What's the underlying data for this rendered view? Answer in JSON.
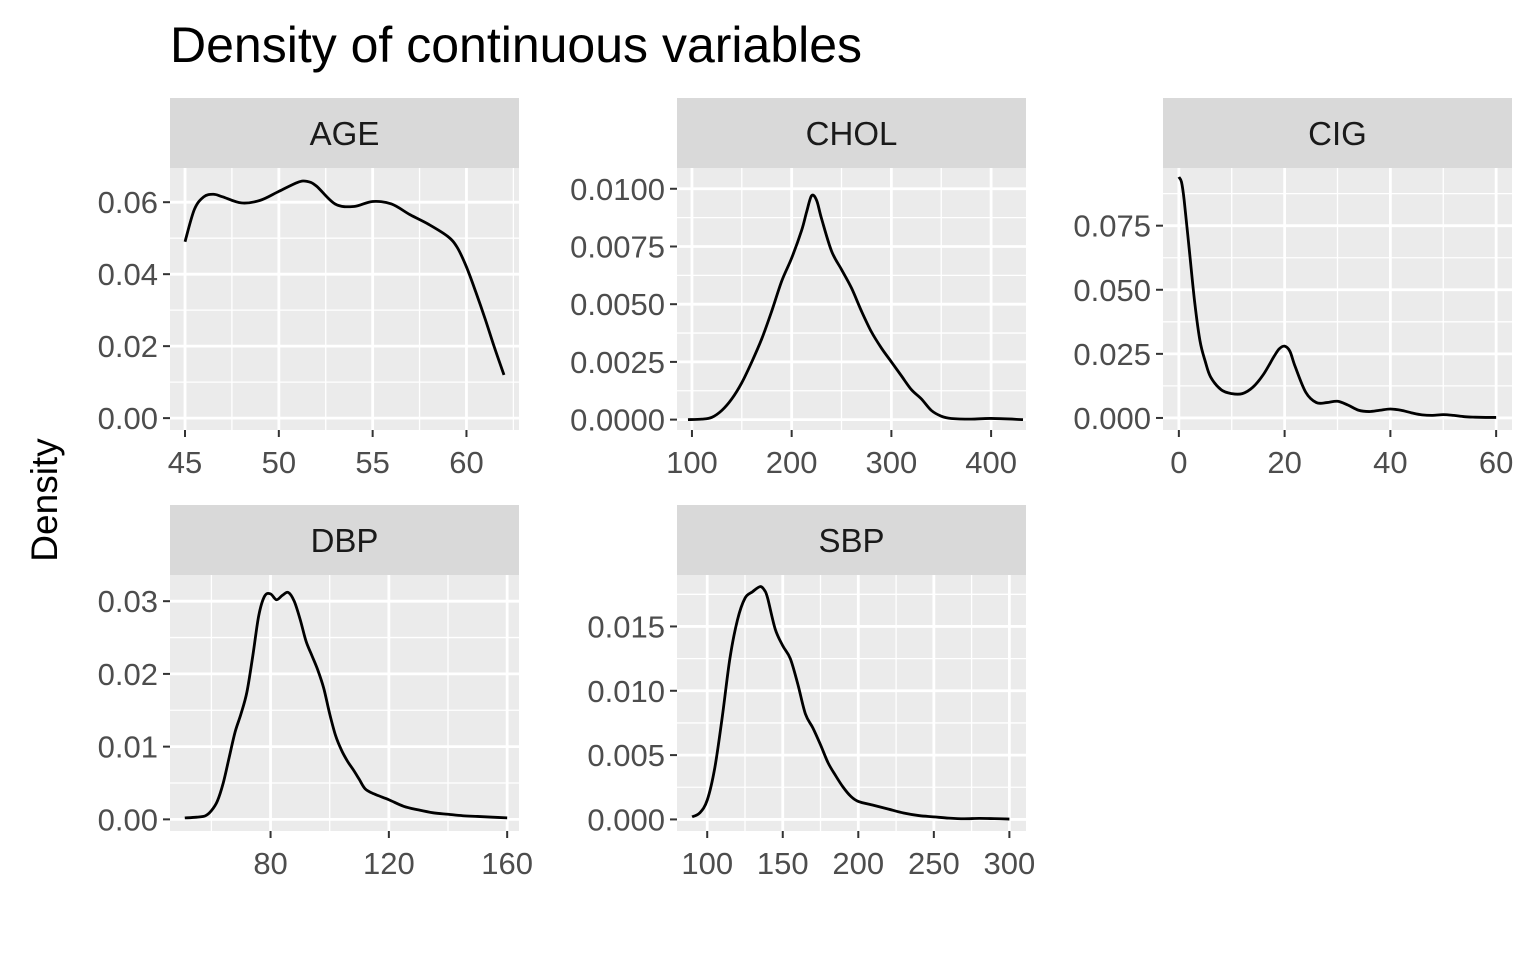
{
  "chart_data": {
    "type": "line",
    "title": "Density of continuous variables",
    "ylabel": "Density",
    "xlabel": "",
    "colors": {
      "panel_bg": "#EBEBEB",
      "strip_bg": "#D9D9D9",
      "grid": "#FFFFFF",
      "line": "#000000",
      "tick": "#4D4D4D"
    },
    "panels": [
      {
        "name": "AGE",
        "xlim": [
          44.2,
          62.8
        ],
        "ylim": [
          -0.0033,
          0.0695
        ],
        "xticks": [
          45,
          50,
          55,
          60
        ],
        "xtick_labels": [
          "45",
          "50",
          "55",
          "60"
        ],
        "yticks": [
          0,
          0.02,
          0.04,
          0.06
        ],
        "ytick_labels": [
          "0.00",
          "0.02",
          "0.04",
          "0.06"
        ],
        "x": [
          45,
          45.5,
          46,
          46.5,
          47,
          48,
          49,
          50,
          51,
          51.5,
          52,
          53,
          54,
          55,
          56,
          57,
          58,
          59,
          59.5,
          60,
          60.5,
          61,
          61.5,
          62
        ],
        "y": [
          0.049,
          0.058,
          0.0615,
          0.0622,
          0.0615,
          0.0598,
          0.0605,
          0.063,
          0.0655,
          0.0658,
          0.0645,
          0.0595,
          0.0588,
          0.0602,
          0.0595,
          0.0565,
          0.0538,
          0.0505,
          0.0475,
          0.042,
          0.035,
          0.0275,
          0.0195,
          0.012
        ]
      },
      {
        "name": "CHOL",
        "xlim": [
          85,
          435
        ],
        "ylim": [
          -0.00045,
          0.0109
        ],
        "xticks": [
          100,
          200,
          300,
          400
        ],
        "xtick_labels": [
          "100",
          "200",
          "300",
          "400"
        ],
        "yticks": [
          0,
          0.0025,
          0.005,
          0.0075,
          0.01
        ],
        "ytick_labels": [
          "0.0000",
          "0.0025",
          "0.0050",
          "0.0075",
          "0.0100"
        ],
        "x": [
          96,
          110,
          120,
          130,
          140,
          150,
          160,
          170,
          180,
          190,
          200,
          210,
          215,
          220,
          225,
          230,
          240,
          250,
          260,
          270,
          280,
          290,
          300,
          310,
          320,
          330,
          340,
          350,
          360,
          380,
          400,
          432
        ],
        "y": [
          0,
          2e-05,
          0.0001,
          0.0004,
          0.0009,
          0.0016,
          0.0025,
          0.0035,
          0.0047,
          0.006,
          0.007,
          0.0082,
          0.009,
          0.0097,
          0.0095,
          0.0087,
          0.0073,
          0.0065,
          0.0057,
          0.0047,
          0.0038,
          0.0031,
          0.0025,
          0.0019,
          0.0013,
          0.0009,
          0.0004,
          0.00015,
          5e-05,
          2e-05,
          5e-05,
          0
        ]
      },
      {
        "name": "CIG",
        "xlim": [
          -3,
          63
        ],
        "ylim": [
          -0.0047,
          0.0975
        ],
        "xticks": [
          0,
          20,
          40,
          60
        ],
        "xtick_labels": [
          "0",
          "20",
          "40",
          "60"
        ],
        "yticks": [
          0,
          0.025,
          0.05,
          0.075
        ],
        "ytick_labels": [
          "0.000",
          "0.025",
          "0.050",
          "0.075"
        ],
        "x": [
          0,
          0.5,
          1,
          2,
          3,
          4,
          5,
          6,
          8,
          10,
          12,
          14,
          16,
          18,
          19,
          20,
          21,
          22,
          24,
          26,
          28,
          30,
          32,
          34,
          36,
          38,
          40,
          42,
          44,
          46,
          48,
          50,
          52,
          54,
          56,
          58,
          60
        ],
        "y": [
          0.094,
          0.092,
          0.085,
          0.065,
          0.045,
          0.03,
          0.022,
          0.016,
          0.011,
          0.0095,
          0.0095,
          0.012,
          0.017,
          0.024,
          0.027,
          0.028,
          0.026,
          0.02,
          0.01,
          0.006,
          0.006,
          0.0065,
          0.005,
          0.003,
          0.0025,
          0.003,
          0.0035,
          0.003,
          0.002,
          0.0012,
          0.001,
          0.0013,
          0.001,
          0.0005,
          0.0003,
          0.0002,
          0.0002
        ]
      },
      {
        "name": "DBP",
        "xlim": [
          46,
          164
        ],
        "ylim": [
          -0.0016,
          0.0336
        ],
        "xticks": [
          80,
          120,
          160
        ],
        "xtick_labels": [
          "80",
          "120",
          "160"
        ],
        "yticks": [
          0,
          0.01,
          0.02,
          0.03
        ],
        "ytick_labels": [
          "0.00",
          "0.01",
          "0.02",
          "0.03"
        ],
        "x": [
          51,
          55,
          58,
          60,
          62,
          64,
          66,
          68,
          70,
          72,
          74,
          76,
          78,
          80,
          82,
          84,
          86,
          88,
          90,
          92,
          94,
          96,
          98,
          100,
          102,
          104,
          106,
          108,
          110,
          112,
          115,
          120,
          125,
          130,
          135,
          140,
          145,
          150,
          155,
          160
        ],
        "y": [
          0.0002,
          0.0003,
          0.0005,
          0.0012,
          0.0025,
          0.005,
          0.0085,
          0.012,
          0.0145,
          0.0175,
          0.0225,
          0.028,
          0.0307,
          0.031,
          0.0302,
          0.0308,
          0.0312,
          0.03,
          0.0275,
          0.0245,
          0.0225,
          0.0205,
          0.018,
          0.0145,
          0.0115,
          0.0095,
          0.008,
          0.0068,
          0.0055,
          0.0042,
          0.0035,
          0.0027,
          0.0018,
          0.0013,
          0.0009,
          0.0007,
          0.0005,
          0.0004,
          0.0003,
          0.0002
        ]
      },
      {
        "name": "SBP",
        "xlim": [
          80,
          311
        ],
        "ylim": [
          -0.0009,
          0.019
        ],
        "xticks": [
          100,
          150,
          200,
          250,
          300
        ],
        "xtick_labels": [
          "100",
          "150",
          "200",
          "250",
          "300"
        ],
        "yticks": [
          0,
          0.005,
          0.01,
          0.015
        ],
        "ytick_labels": [
          "0.000",
          "0.005",
          "0.010",
          "0.015"
        ],
        "x": [
          90,
          95,
          100,
          105,
          110,
          115,
          120,
          125,
          130,
          135,
          138,
          140,
          145,
          150,
          155,
          160,
          165,
          170,
          175,
          180,
          185,
          190,
          195,
          200,
          210,
          220,
          230,
          240,
          250,
          260,
          270,
          280,
          290,
          300
        ],
        "y": [
          0.0002,
          0.0005,
          0.0015,
          0.004,
          0.008,
          0.0125,
          0.0155,
          0.0172,
          0.0177,
          0.0181,
          0.0178,
          0.0172,
          0.0148,
          0.0135,
          0.0125,
          0.0105,
          0.0082,
          0.0071,
          0.0058,
          0.0044,
          0.0034,
          0.0025,
          0.0018,
          0.0014,
          0.0011,
          0.0008,
          0.0005,
          0.0003,
          0.0002,
          0.0001,
          5e-05,
          8e-05,
          6e-05,
          3e-05
        ]
      }
    ]
  }
}
